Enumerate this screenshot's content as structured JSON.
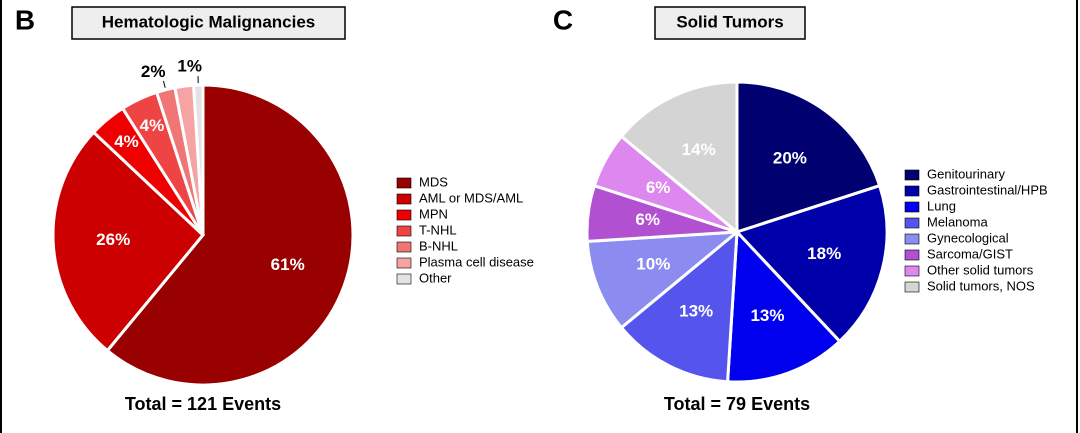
{
  "chart_data": [
    {
      "type": "pie",
      "panel": "B",
      "title": "Hematologic Malignancies",
      "total": "Total = 121 Events",
      "categories": [
        "MDS",
        "AML or MDS/AML",
        "MPN",
        "T-NHL",
        "B-NHL",
        "Plasma cell disease",
        "Other"
      ],
      "values": [
        61,
        26,
        4,
        4,
        2,
        2,
        1
      ],
      "value_labels": [
        "61%",
        "26%",
        "4%",
        "4%",
        "2%",
        null,
        "1%"
      ],
      "colors": [
        "#990000",
        "#cc0000",
        "#ee0000",
        "#ee4444",
        "#f07575",
        "#f5a3a3",
        "#e3e3e3"
      ]
    },
    {
      "type": "pie",
      "panel": "C",
      "title": "Solid Tumors",
      "total": "Total = 79 Events",
      "categories": [
        "Genitourinary",
        "Gastrointestinal/HPB",
        "Lung",
        "Melanoma",
        "Gynecological",
        "Sarcoma/GIST",
        "Other solid tumors",
        "Solid tumors, NOS"
      ],
      "values": [
        20,
        18,
        13,
        13,
        10,
        6,
        6,
        14
      ],
      "value_labels": [
        "20%",
        "18%",
        "13%",
        "13%",
        "10%",
        "6%",
        "6%",
        "14%"
      ],
      "colors": [
        "#000070",
        "#0000aa",
        "#0000ee",
        "#5555ee",
        "#8c8cf0",
        "#b150d0",
        "#dd88ee",
        "#d4d4d4"
      ]
    }
  ]
}
